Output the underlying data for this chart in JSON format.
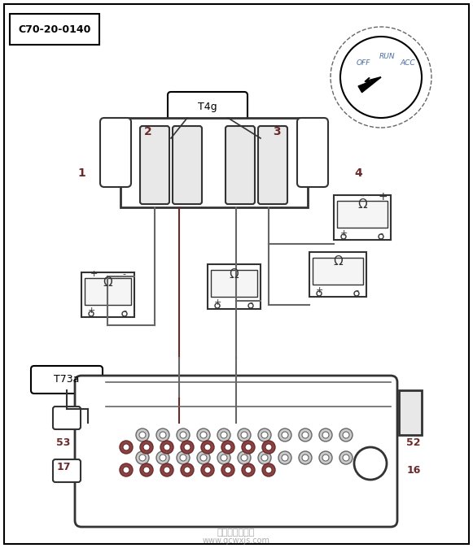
{
  "title": "C70-20-0140",
  "bg_color": "#ffffff",
  "border_color": "#000000",
  "dark_color": "#333333",
  "brown_color": "#6B2A2A",
  "blue_color": "#4A6FA5",
  "gray_color": "#666666",
  "labels": {
    "label1": "1",
    "label2": "2",
    "label3": "3",
    "label4": "4",
    "label_T4g": "T4g",
    "label_T73a": "T73a",
    "label_53": "53",
    "label_17": "17",
    "label_52": "52",
    "label_16": "16"
  },
  "ignition_labels": [
    "OFF",
    "RUN",
    "ACC"
  ],
  "omega_symbol": "Ω"
}
